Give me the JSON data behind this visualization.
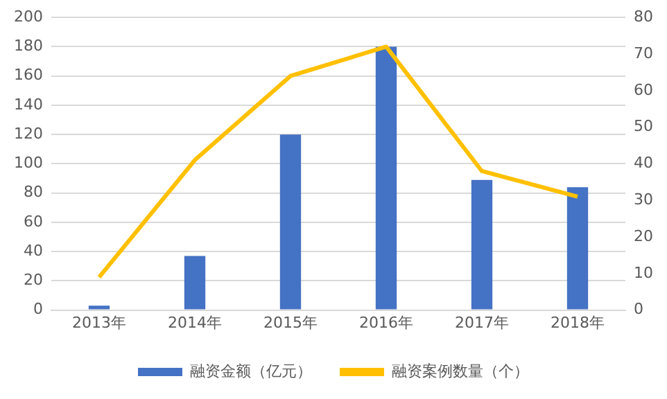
{
  "chart_data": {
    "type": "bar",
    "categories": [
      "2013年",
      "2014年",
      "2015年",
      "2016年",
      "2017年",
      "2018年"
    ],
    "series": [
      {
        "name": "融资金额（亿元）",
        "color": "#4472c4",
        "values": [
          3,
          37,
          120,
          180,
          89,
          84
        ]
      },
      {
        "name": "融资案例数量（个）",
        "type": "line",
        "axis": "y2",
        "color": "#ffc000",
        "values": [
          9,
          41,
          64,
          72,
          38,
          31
        ],
        "marker": "none"
      }
    ],
    "ylim": [
      0,
      200
    ],
    "yticks": [
      0,
      20,
      40,
      60,
      80,
      100,
      120,
      140,
      160,
      180,
      200
    ],
    "y2lim": [
      0,
      80
    ],
    "y2ticks": [
      0,
      10,
      20,
      30,
      40,
      50,
      60,
      70,
      80
    ],
    "grid": "y",
    "legend": "bottom"
  }
}
